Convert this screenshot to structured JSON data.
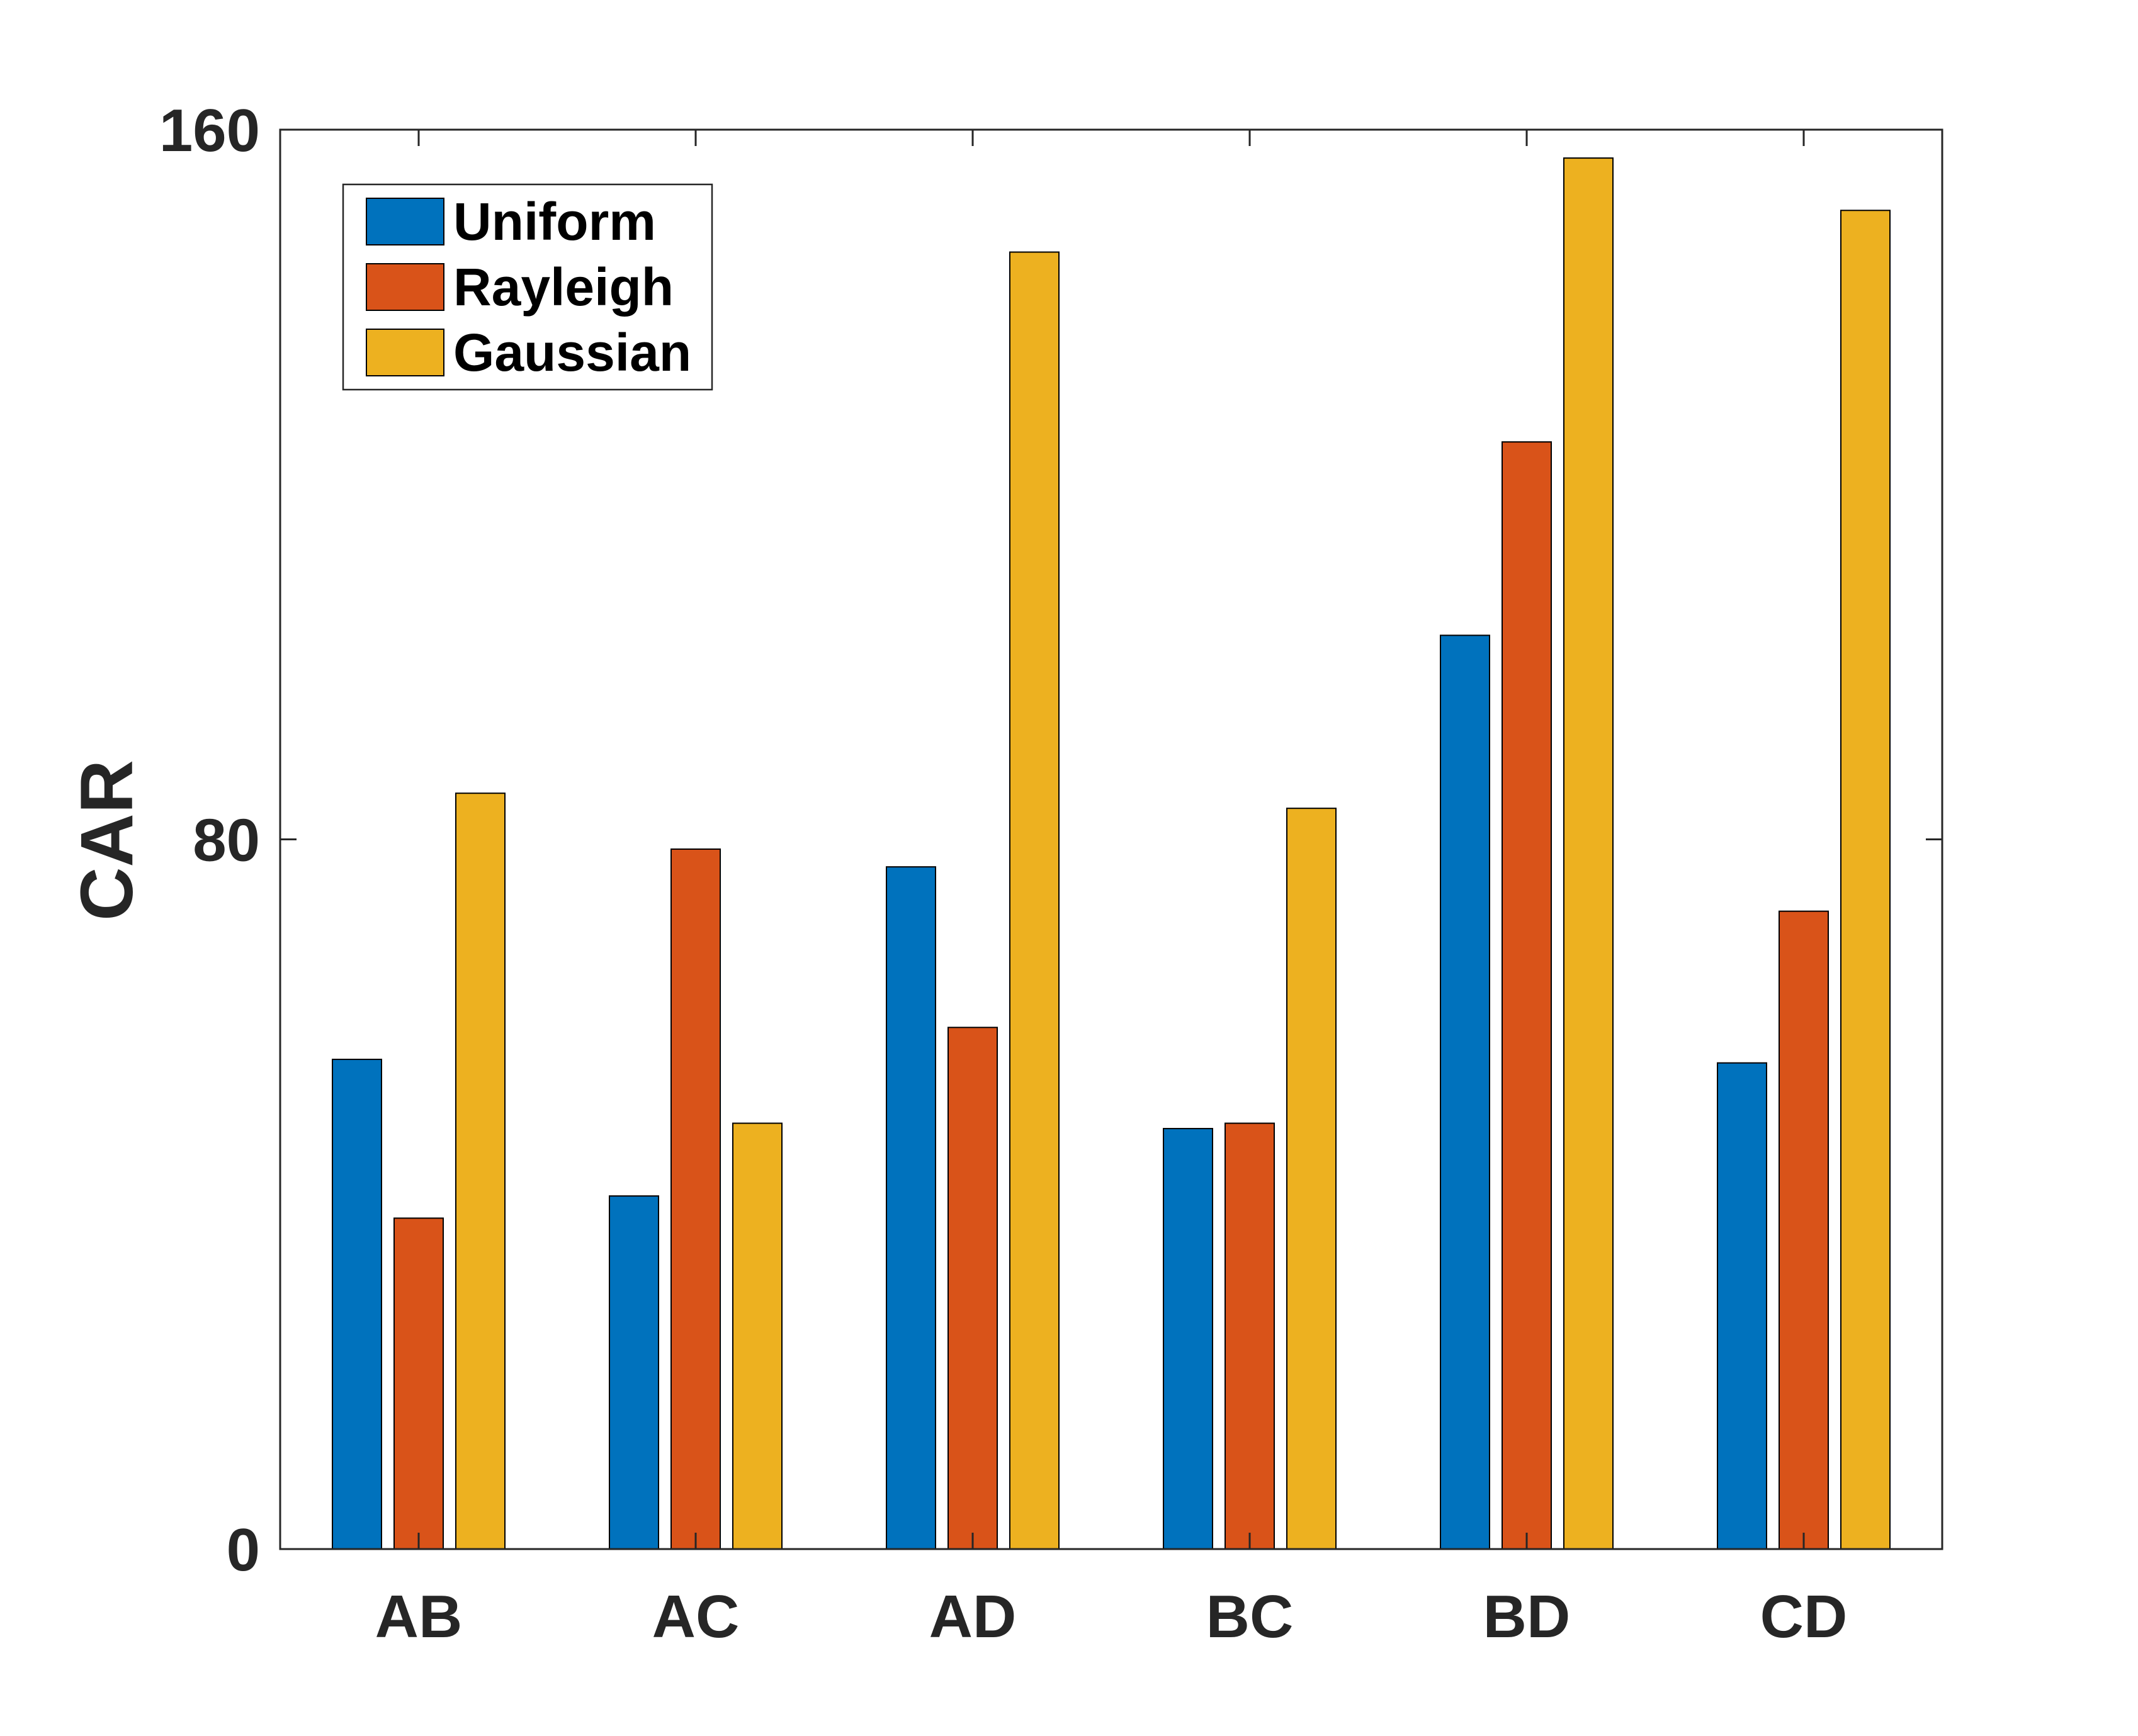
{
  "chart_data": {
    "type": "bar",
    "title": "",
    "xlabel": "",
    "ylabel": "CAR",
    "categories": [
      "AB",
      "AC",
      "AD",
      "BC",
      "BD",
      "CD"
    ],
    "series": [
      {
        "name": "Uniform",
        "color": "#0072BD",
        "values": [
          55.2,
          39.8,
          76.9,
          47.4,
          103.0,
          54.8
        ]
      },
      {
        "name": "Rayleigh",
        "color": "#D95319",
        "values": [
          37.3,
          78.9,
          58.8,
          48.0,
          124.8,
          71.9
        ]
      },
      {
        "name": "Gaussian",
        "color": "#EDB120",
        "values": [
          85.2,
          48.0,
          146.2,
          83.5,
          156.8,
          150.9
        ]
      }
    ],
    "ylim": [
      0,
      160
    ],
    "yticks": [
      0,
      80,
      160
    ],
    "ytick_labels": [
      "0",
      "80",
      "160"
    ],
    "grid": false,
    "legend_position": "top-left"
  }
}
